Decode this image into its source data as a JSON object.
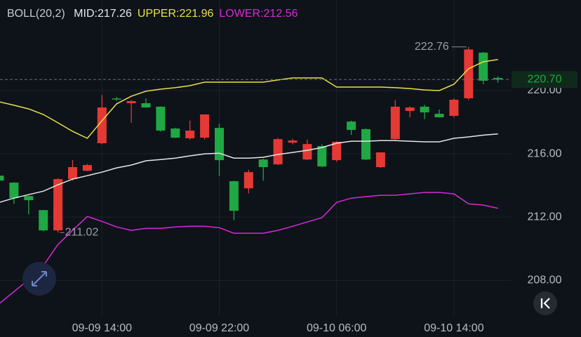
{
  "chart_data": {
    "type": "candlestick",
    "indicator": "BOLL(20,2)",
    "categories": [
      null,
      null,
      null,
      null,
      null,
      null,
      null,
      "09-09 14:00",
      null,
      null,
      null,
      null,
      null,
      null,
      null,
      "09-09 22:00",
      null,
      null,
      null,
      null,
      null,
      null,
      null,
      "09-10 06:00",
      null,
      null,
      null,
      null,
      null,
      null,
      null,
      "09-10 14:00",
      null,
      null,
      null
    ],
    "open": [
      214.62,
      214.18,
      213.33,
      212.44,
      211.16,
      214.4,
      214.93,
      216.67,
      219.5,
      219.2,
      219.2,
      218.98,
      217.6,
      216.98,
      217.02,
      217.64,
      214.27,
      213.82,
      215.64,
      215.33,
      216.71,
      215.64,
      216.49,
      215.6,
      218.04,
      217.56,
      215.16,
      216.93,
      218.71,
      218.98,
      218.53,
      218.4,
      219.51,
      222.4,
      220.8
    ],
    "high": [
      214.7,
      214.2,
      213.35,
      212.45,
      214.45,
      215.6,
      215.35,
      219.73,
      219.6,
      219.4,
      219.5,
      219.0,
      217.65,
      218.1,
      218.5,
      217.9,
      214.3,
      215.0,
      215.7,
      217.0,
      216.95,
      216.9,
      216.6,
      216.8,
      218.1,
      217.6,
      216.1,
      219.4,
      219.0,
      219.1,
      218.8,
      219.5,
      222.76,
      222.45,
      220.9
    ],
    "low": [
      214.25,
      212.84,
      212.18,
      211.1,
      211.02,
      214.3,
      214.9,
      216.6,
      219.35,
      217.96,
      218.9,
      217.4,
      217.0,
      216.9,
      216.9,
      214.6,
      211.8,
      213.5,
      214.3,
      215.3,
      216.6,
      215.6,
      215.15,
      215.5,
      217.2,
      215.6,
      215.1,
      216.9,
      218.3,
      218.2,
      218.3,
      218.3,
      219.4,
      220.4,
      220.5
    ],
    "close": [
      214.31,
      213.2,
      213.07,
      211.16,
      214.4,
      215.16,
      215.29,
      218.93,
      219.47,
      219.33,
      218.93,
      217.47,
      217.02,
      217.47,
      218.49,
      215.6,
      212.4,
      214.84,
      215.16,
      216.93,
      216.84,
      216.62,
      215.2,
      216.76,
      217.51,
      215.64,
      216.09,
      218.98,
      218.93,
      218.62,
      218.31,
      219.42,
      222.6,
      220.62,
      220.7
    ],
    "up_color": "#e53935",
    "down_color": "#1fa844",
    "series": [
      {
        "name": "MID:",
        "color": "#e6e6e6",
        "current": 217.26,
        "values": [
          212.93,
          213.2,
          213.42,
          213.64,
          214.04,
          214.4,
          214.62,
          214.84,
          215.11,
          215.29,
          215.56,
          215.64,
          215.73,
          215.87,
          216.0,
          216.04,
          215.73,
          215.73,
          215.78,
          215.96,
          216.09,
          216.22,
          216.4,
          216.67,
          216.8,
          216.8,
          216.84,
          216.84,
          216.8,
          216.76,
          216.76,
          216.98,
          217.07,
          217.18,
          217.26
        ]
      },
      {
        "name": "UPPER:",
        "color": "#e8e14a",
        "current": 221.96,
        "values": [
          219.29,
          219.07,
          218.84,
          218.49,
          217.96,
          217.42,
          216.98,
          218.09,
          219.16,
          219.64,
          219.96,
          220.09,
          220.18,
          220.31,
          220.53,
          220.53,
          220.53,
          220.53,
          220.53,
          220.67,
          220.8,
          220.8,
          220.8,
          220.22,
          220.22,
          220.22,
          220.22,
          220.18,
          220.13,
          220.04,
          220.0,
          220.4,
          221.38,
          221.82,
          221.96
        ]
      },
      {
        "name": "LOWER:",
        "color": "#d82ad8",
        "current": 212.56,
        "values": [
          206.53,
          207.29,
          208.04,
          208.93,
          210.27,
          211.16,
          212.04,
          211.73,
          211.38,
          211.16,
          211.29,
          211.29,
          211.38,
          211.42,
          211.42,
          211.33,
          210.98,
          210.98,
          210.98,
          211.16,
          211.42,
          211.69,
          211.96,
          212.93,
          213.2,
          213.29,
          213.38,
          213.38,
          213.47,
          213.56,
          213.56,
          213.47,
          212.84,
          212.76,
          212.56
        ]
      }
    ],
    "ylim": [
      205.75,
      223.95
    ],
    "yticks": [
      {
        "value": 208,
        "label": "208.00"
      },
      {
        "value": 212,
        "label": "212.00"
      },
      {
        "value": 216,
        "label": "216.00"
      },
      {
        "value": 220,
        "label": "220.00"
      }
    ],
    "last_price": {
      "value": 220.7,
      "label": "220.70"
    },
    "high_label": 222.76,
    "low_label": 211.02,
    "grid": true
  }
}
